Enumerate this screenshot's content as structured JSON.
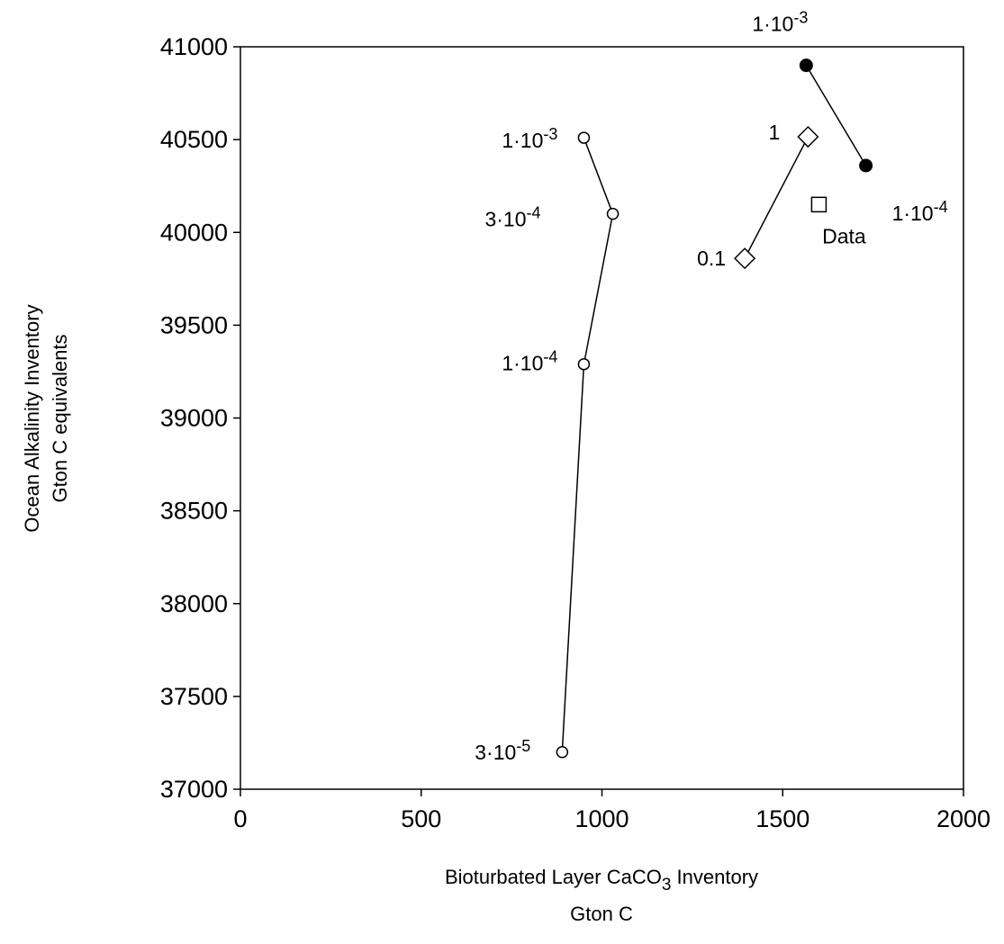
{
  "chart_data": {
    "type": "scatter",
    "title": "",
    "xlabel": {
      "line1_pre": "Bioturbated Layer CaCO",
      "line1_sub": "3",
      "line1_post": " Inventory",
      "line2": "Gton C"
    },
    "ylabel": {
      "line1": "Ocean Alkalinity Inventory",
      "line2": "Gton C equivalents"
    },
    "xlim": [
      0,
      2000
    ],
    "ylim": [
      37000,
      41000
    ],
    "xticks": [
      0,
      500,
      1000,
      1500,
      2000
    ],
    "yticks": [
      37000,
      37500,
      38000,
      38500,
      39000,
      39500,
      40000,
      40500,
      41000
    ],
    "grid": false,
    "series": [
      {
        "marker": "open-circle",
        "connected": true,
        "points": [
          {
            "x": 890,
            "y": 37200,
            "label": {
              "base": "3·10",
              "exp": "-5"
            }
          },
          {
            "x": 950,
            "y": 39290,
            "label": {
              "base": "1·10",
              "exp": "-4"
            }
          },
          {
            "x": 1030,
            "y": 40100,
            "label": {
              "base": "3·10",
              "exp": "-4"
            }
          },
          {
            "x": 950,
            "y": 40510,
            "label": {
              "base": "1·10",
              "exp": "-3"
            }
          }
        ]
      },
      {
        "marker": "filled-circle",
        "connected": true,
        "points": [
          {
            "x": 1565,
            "y": 40900,
            "label": {
              "base": "1·10",
              "exp": "-3"
            }
          },
          {
            "x": 1730,
            "y": 40360,
            "label": {
              "base": "1·10",
              "exp": "-4"
            }
          }
        ]
      },
      {
        "marker": "open-diamond",
        "connected": true,
        "points": [
          {
            "x": 1395,
            "y": 39860,
            "label": {
              "base": "0.1",
              "exp": ""
            }
          },
          {
            "x": 1570,
            "y": 40515,
            "label": {
              "base": "1",
              "exp": ""
            }
          }
        ]
      },
      {
        "marker": "open-square",
        "connected": false,
        "points": [
          {
            "x": 1600,
            "y": 40150,
            "label": {
              "base": "Data",
              "exp": ""
            }
          }
        ]
      }
    ]
  }
}
